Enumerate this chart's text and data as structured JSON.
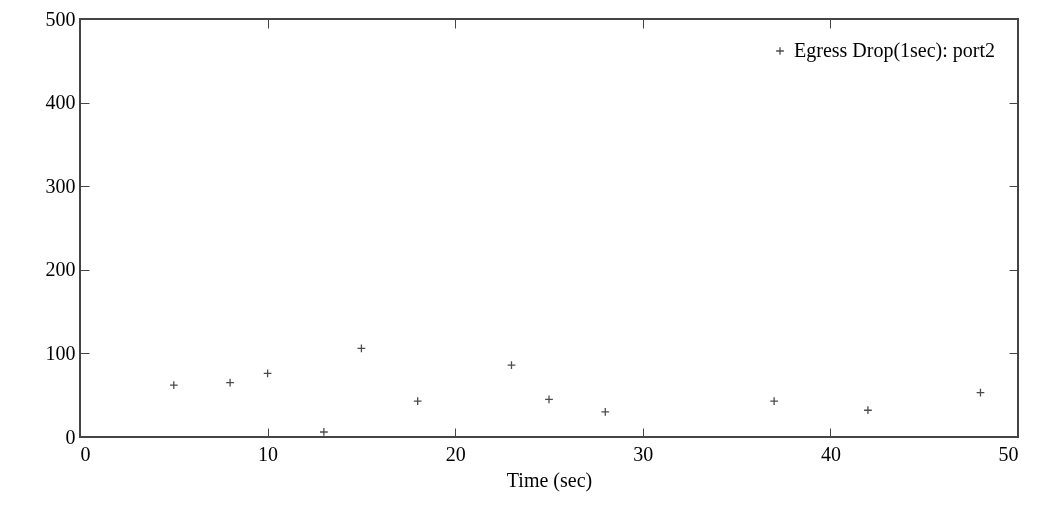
{
  "chart_data": {
    "type": "scatter",
    "xlabel": "Time (sec)",
    "x": [
      5,
      8,
      10,
      13,
      15,
      18,
      23,
      25,
      28,
      37,
      42,
      48
    ],
    "series": [
      {
        "name": "Egress Drop(1sec): port2",
        "color": "#000000",
        "values": [
          62,
          65,
          76,
          6,
          106,
          43,
          86,
          45,
          30,
          43,
          32,
          53
        ]
      }
    ],
    "xlim": [
      0,
      50
    ],
    "ylim": [
      0,
      500
    ],
    "xticks": [
      0,
      10,
      20,
      30,
      40,
      50
    ],
    "yticks": [
      0,
      100,
      200,
      300,
      400,
      500
    ],
    "marker": "cross",
    "legend": "top right",
    "grid": false
  }
}
